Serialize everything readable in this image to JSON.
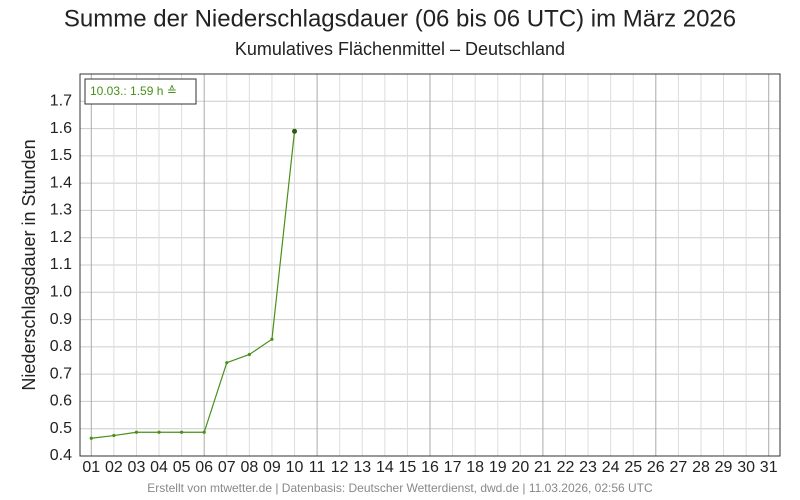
{
  "chart_data": {
    "type": "line",
    "title": "Summe der Niederschlagsdauer (06 bis 06 UTC) im März 2026",
    "subtitle": "Kumulatives Flächenmittel – Deutschland",
    "y_label": "Niederschlagsdauer in Stunden",
    "annotation": "10.03.: 1.59 h ≙",
    "footer": "Erstellt von mtwetter.de | Datenbasis: Deutscher Wetterdienst, dwd.de | 11.03.2026, 02:56 UTC",
    "categories": [
      "01",
      "02",
      "03",
      "04",
      "05",
      "06",
      "07",
      "08",
      "09",
      "10",
      "11",
      "12",
      "13",
      "14",
      "15",
      "16",
      "17",
      "18",
      "19",
      "20",
      "21",
      "22",
      "23",
      "24",
      "25",
      "26",
      "27",
      "28",
      "29",
      "30",
      "31"
    ],
    "series": [
      {
        "name": "Niederschlagsdauer",
        "color": "#4a8f1a",
        "values": [
          0.465,
          0.475,
          0.487,
          0.487,
          0.487,
          0.487,
          0.742,
          0.772,
          0.828,
          1.59,
          null,
          null,
          null,
          null,
          null,
          null,
          null,
          null,
          null,
          null,
          null,
          null,
          null,
          null,
          null,
          null,
          null,
          null,
          null,
          null,
          null
        ]
      }
    ],
    "ylim": [
      0.4,
      1.8
    ],
    "yticks": [
      0.4,
      0.5,
      0.6,
      0.7,
      0.8,
      0.9,
      {
        "value": 1.0,
        "label": "1.0"
      },
      1.1,
      1.2,
      1.3,
      1.4,
      1.5,
      1.6,
      1.7
    ],
    "grid": true
  }
}
